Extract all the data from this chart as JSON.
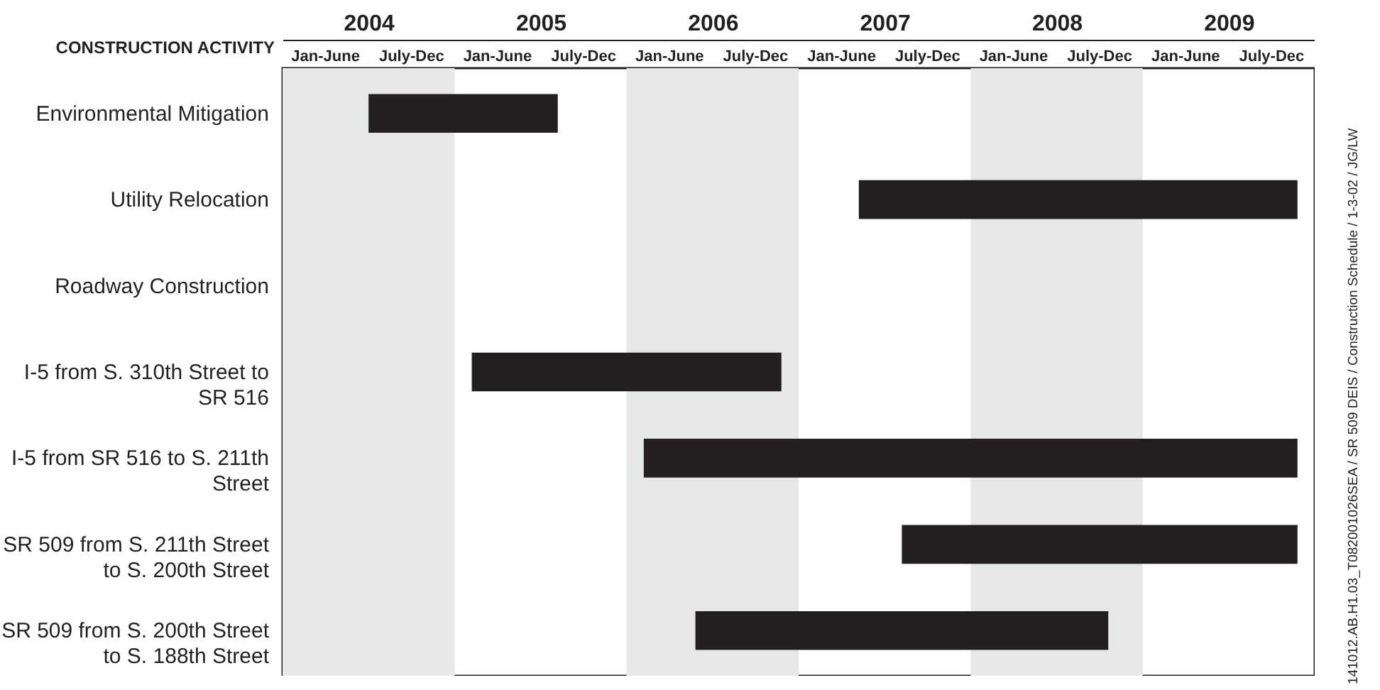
{
  "chart_data": {
    "type": "bar",
    "orientation": "horizontal",
    "ylabel": "CONSTRUCTION ACTIVITY",
    "categories": [
      "Environmental Mitigation",
      "Utility Relocation",
      "Roadway Construction",
      "I-5 from S. 310th Street to SR 516",
      "I-5 from SR 516 to S. 211th Street",
      "SR 509 from S. 211th Street to S. 200th Street",
      "SR 509 from S. 200th Street to S. 188th Street"
    ],
    "base": [
      2004.5,
      2007.35,
      null,
      2005.1,
      2006.1,
      2007.6,
      2006.4
    ],
    "values": [
      1.1,
      2.55,
      null,
      1.8,
      3.8,
      2.3,
      2.4
    ],
    "color": "#231f20",
    "xlim": [
      2004,
      2010
    ],
    "xticks": [
      {
        "value": 2004.5,
        "label": "2004"
      },
      {
        "value": 2005.5,
        "label": "2005"
      },
      {
        "value": 2006.5,
        "label": "2006"
      },
      {
        "value": 2007.5,
        "label": "2007"
      },
      {
        "value": 2008.5,
        "label": "2008"
      },
      {
        "value": 2009.5,
        "label": "2009"
      }
    ],
    "bands": [
      {
        "axis": "x",
        "from": 2004,
        "to": 2005,
        "color": "#e6e7e8"
      },
      {
        "axis": "x",
        "from": 2006,
        "to": 2007,
        "color": "#e6e7e8"
      },
      {
        "axis": "x",
        "from": 2008,
        "to": 2009,
        "color": "#e6e7e8"
      }
    ],
    "annotations": [
      "Jan-June",
      "July-Dec",
      "Jan-June",
      "July-Dec",
      "Jan-June",
      "July-Dec",
      "Jan-June",
      "July-Dec",
      "Jan-June",
      "July-Dec",
      "Jan-June",
      "July-Dec",
      "141012.AB.H1.03_T082001026SEA / SR 509 DEIS  / Construction Schedule / 1-3-02 / JG/LW"
    ]
  }
}
